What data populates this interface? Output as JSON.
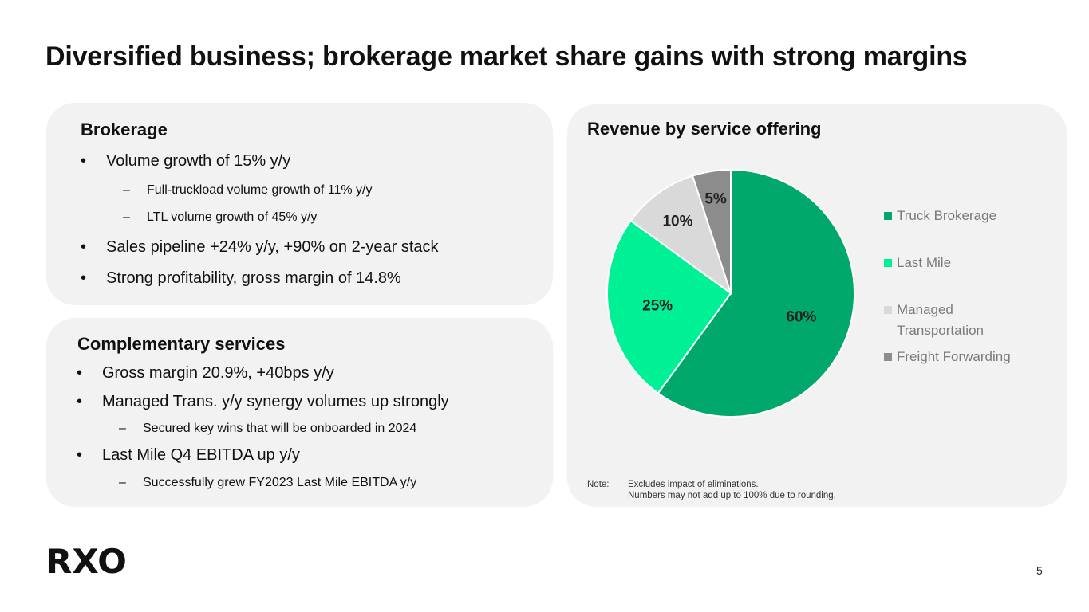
{
  "title": "Diversified business; brokerage market share gains with strong margins",
  "brokerage": {
    "heading": "Brokerage",
    "items": [
      {
        "level": 1,
        "marker": "•",
        "text": "Volume growth of 15% y/y"
      },
      {
        "level": 2,
        "marker": "–",
        "text": "Full-truckload volume growth of 11% y/y"
      },
      {
        "level": 2,
        "marker": "–",
        "text": "LTL volume growth of 45% y/y"
      },
      {
        "level": 1,
        "marker": "•",
        "text": "Sales pipeline +24% y/y, +90% on 2-year stack"
      },
      {
        "level": 1,
        "marker": "•",
        "text": "Strong profitability, gross margin of 14.8%"
      }
    ]
  },
  "complementary": {
    "heading": "Complementary services",
    "items": [
      {
        "level": 1,
        "marker": "•",
        "text": "Gross margin 20.9%, +40bps y/y"
      },
      {
        "level": 1,
        "marker": "•",
        "text": "Managed Trans. y/y synergy volumes up strongly"
      },
      {
        "level": 2,
        "marker": "–",
        "text": "Secured key wins that will be onboarded in 2024"
      },
      {
        "level": 1,
        "marker": "•",
        "text": "Last Mile Q4 EBITDA up y/y"
      },
      {
        "level": 2,
        "marker": "–",
        "text": "Successfully grew FY2023 Last Mile EBITDA y/y"
      }
    ]
  },
  "chart_data": {
    "type": "pie",
    "title": "Revenue by service offering",
    "categories": [
      "Truck Brokerage",
      "Last Mile",
      "Managed Transportation",
      "Freight Forwarding"
    ],
    "values": [
      60,
      25,
      10,
      5
    ],
    "data_labels": [
      "60%",
      "25%",
      "10%",
      "5%"
    ],
    "colors": [
      "#00a86b",
      "#00f095",
      "#d9d9d9",
      "#8c8c8c"
    ],
    "legend": "right",
    "legend_labels": [
      "Truck Brokerage",
      "Last Mile",
      "Managed\nTransportation",
      "Freight Forwarding"
    ]
  },
  "note": {
    "label": "Note:",
    "line1": "Excludes impact of eliminations.",
    "line2": "Numbers may not add up to 100% due to rounding."
  },
  "logo_text": "RXO",
  "page_number": "5"
}
